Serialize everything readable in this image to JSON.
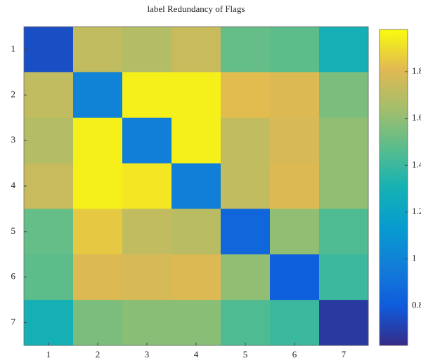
{
  "chart_data": {
    "type": "heatmap",
    "title": "label Redundancy of Flags",
    "x": [
      "1",
      "2",
      "3",
      "4",
      "5",
      "6",
      "7"
    ],
    "y": [
      "1",
      "2",
      "3",
      "4",
      "5",
      "6",
      "7"
    ],
    "values": [
      [
        0.75,
        1.72,
        1.68,
        1.74,
        1.5,
        1.48,
        1.3
      ],
      [
        1.72,
        1.0,
        1.95,
        1.95,
        1.82,
        1.8,
        1.55
      ],
      [
        1.68,
        1.95,
        0.98,
        1.95,
        1.72,
        1.78,
        1.6
      ],
      [
        1.74,
        1.95,
        1.93,
        0.98,
        1.72,
        1.8,
        1.6
      ],
      [
        1.5,
        1.85,
        1.72,
        1.7,
        0.85,
        1.6,
        1.45
      ],
      [
        1.48,
        1.8,
        1.78,
        1.8,
        1.6,
        0.82,
        1.4
      ],
      [
        1.3,
        1.55,
        1.58,
        1.58,
        1.45,
        1.4,
        0.68
      ]
    ],
    "colormap": "parula",
    "clim": [
      0.63,
      1.98
    ],
    "cticks": [
      0.8,
      1,
      1.2,
      1.4,
      1.6,
      1.8
    ]
  }
}
